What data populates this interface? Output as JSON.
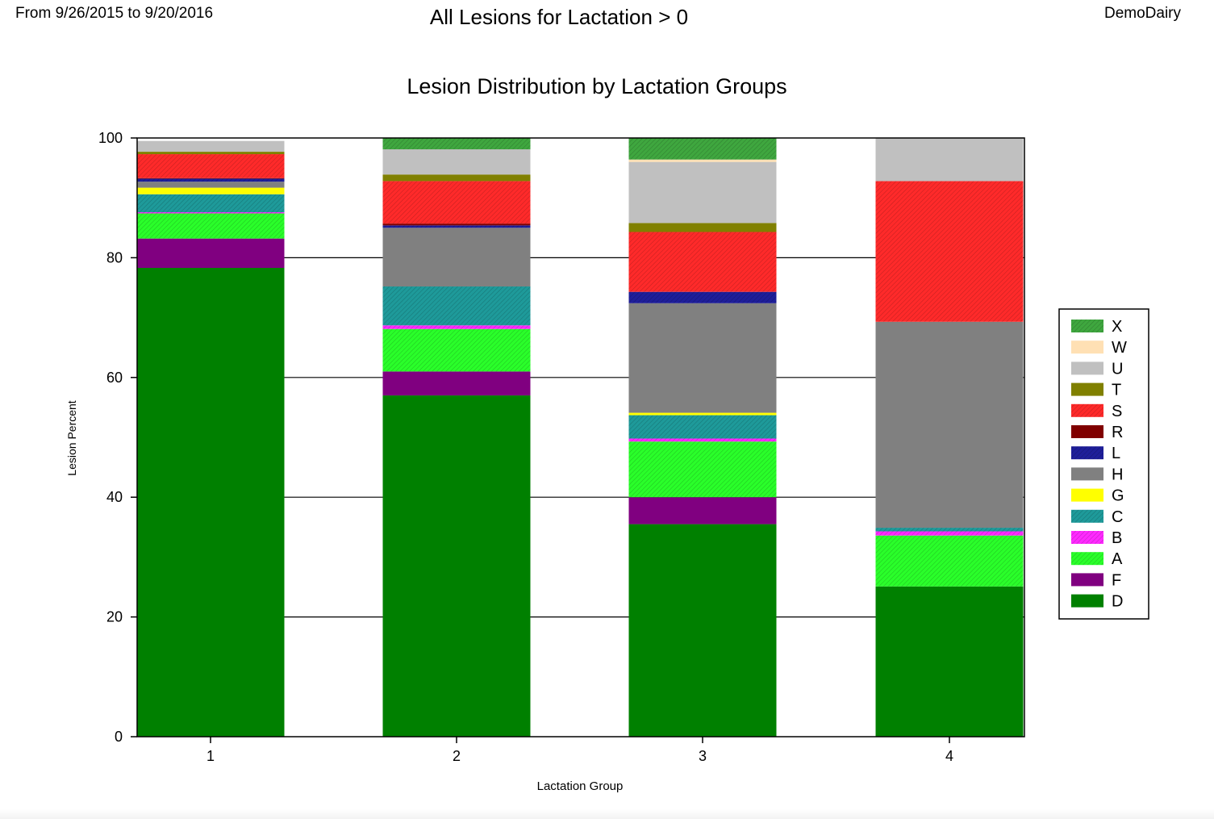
{
  "header": {
    "date_range": "From 9/26/2015 to 9/20/2016",
    "title": "All Lesions for Lactation > 0",
    "dairy": "DemoDairy"
  },
  "colors": {
    "X": "#3fa73f",
    "W": "#ffe0b4",
    "U": "#c0c0c0",
    "T": "#808000",
    "S": "#ff2a2a",
    "R": "#800000",
    "L": "#1e1e9a",
    "H": "#808080",
    "G": "#ffff00",
    "C": "#1e9a9a",
    "B": "#ff2aff",
    "A": "#2aff2a",
    "F": "#800080",
    "D": "#008000"
  },
  "hatched": [
    "X",
    "S",
    "L",
    "C",
    "B",
    "A"
  ],
  "chart_data": {
    "type": "bar",
    "stacked": true,
    "title": "Lesion Distribution by Lactation Groups",
    "xlabel": "Lactation Group",
    "ylabel": "Lesion Percent",
    "ylim": [
      0,
      100
    ],
    "yticks": [
      0,
      20,
      40,
      60,
      80,
      100
    ],
    "grid": true,
    "legend_position": "right",
    "categories": [
      "1",
      "2",
      "3",
      "4"
    ],
    "legend_order": [
      "X",
      "W",
      "U",
      "T",
      "S",
      "R",
      "L",
      "H",
      "G",
      "C",
      "B",
      "A",
      "F",
      "D"
    ],
    "series": [
      {
        "name": "D",
        "values": [
          78.3,
          57.0,
          35.5,
          25.1
        ]
      },
      {
        "name": "F",
        "values": [
          4.9,
          4.0,
          4.5,
          0
        ]
      },
      {
        "name": "A",
        "values": [
          4.2,
          7.1,
          9.3,
          8.5
        ]
      },
      {
        "name": "B",
        "values": [
          0.2,
          0.6,
          0.5,
          0.7
        ]
      },
      {
        "name": "C",
        "values": [
          3.0,
          6.5,
          3.9,
          0.6
        ]
      },
      {
        "name": "G",
        "values": [
          1.1,
          0,
          0.4,
          0
        ]
      },
      {
        "name": "H",
        "values": [
          1.0,
          9.8,
          18.3,
          34.4
        ]
      },
      {
        "name": "L",
        "values": [
          0.5,
          0.4,
          1.9,
          0
        ]
      },
      {
        "name": "R",
        "values": [
          0.1,
          0.3,
          0,
          0
        ]
      },
      {
        "name": "S",
        "values": [
          4.0,
          7.1,
          10.0,
          23.5
        ]
      },
      {
        "name": "T",
        "values": [
          0.4,
          1.1,
          1.5,
          0
        ]
      },
      {
        "name": "U",
        "values": [
          1.8,
          4.2,
          10.2,
          7.2
        ]
      },
      {
        "name": "W",
        "values": [
          0,
          0,
          0.4,
          0
        ]
      },
      {
        "name": "X",
        "values": [
          0,
          1.9,
          3.6,
          0
        ]
      }
    ]
  }
}
